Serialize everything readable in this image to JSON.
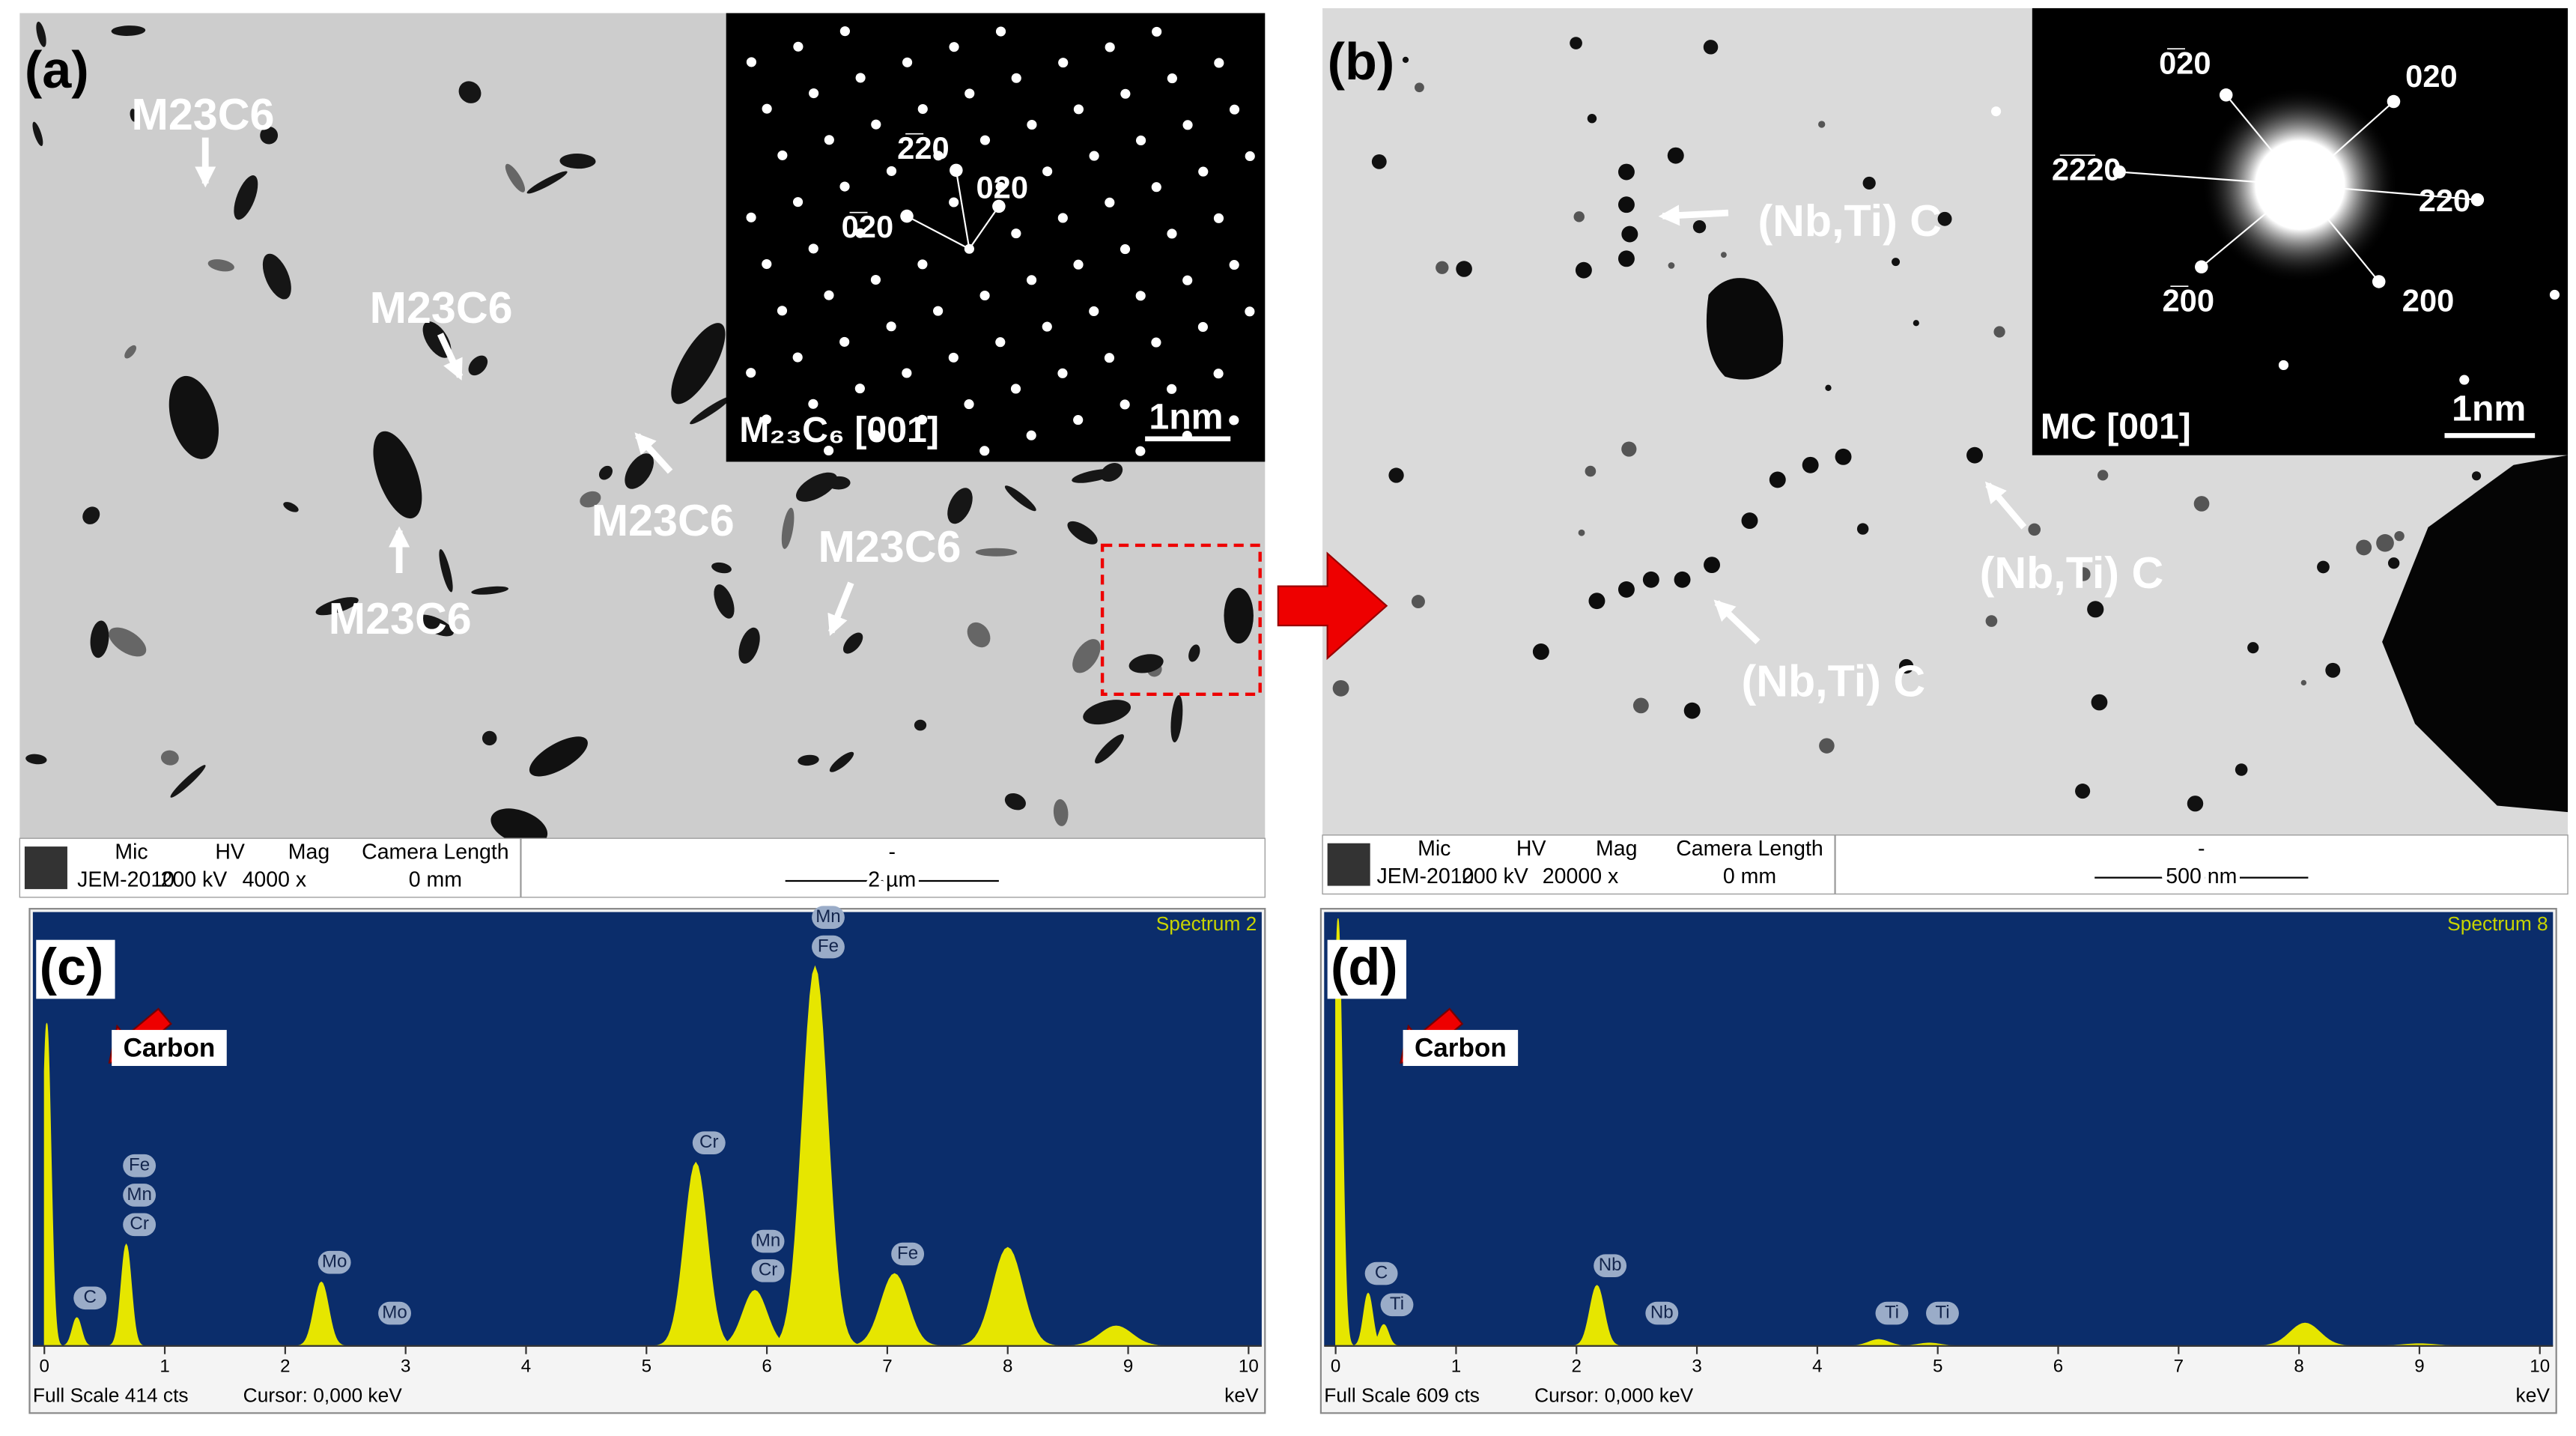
{
  "images": [
    {
      "label": "(a)",
      "annotations": [
        "M23C6",
        "M23C6",
        "M23C6",
        "M23C6",
        "M23C6"
      ],
      "inset": {
        "spots": [
          "2̅20",
          "020",
          "0̅20"
        ],
        "caption": "M₂₃C₆ [001]",
        "scale": "1nm"
      },
      "status": {
        "header": [
          "Mic",
          "HV",
          "Mag",
          "Camera Length"
        ],
        "values": [
          "JEM-2010",
          "200 kV",
          "4000 x",
          "0 mm"
        ],
        "scale_dash": "-",
        "scale": "2 µm"
      }
    },
    {
      "label": "(b)",
      "annotations": [
        "(Nb,Ti) C",
        "(Nb,Ti) C",
        "(Nb,Ti) C"
      ],
      "inset": {
        "spots": [
          "0̅20",
          "020",
          "2̅2̅20",
          "220",
          "2̅00",
          "200"
        ],
        "caption": "MC [001]",
        "scale": "1nm"
      },
      "status": {
        "header": [
          "Mic",
          "HV",
          "Mag",
          "Camera Length"
        ],
        "values": [
          "JEM-2010",
          "200 kV",
          "20000 x",
          "0 mm"
        ],
        "scale_dash": "-",
        "scale": "500 nm"
      }
    }
  ],
  "chart_data": [
    {
      "type": "area",
      "label": "(c)",
      "title": "Spectrum 2",
      "callout": "Carbon",
      "x": [
        0.02,
        0.27,
        0.68,
        2.3,
        5.41,
        5.9,
        6.4,
        7.06,
        8.0,
        8.9
      ],
      "values": [
        308,
        27,
        97,
        61,
        175,
        53,
        362,
        69,
        94,
        19
      ],
      "color": "#e6e600",
      "xlim": [
        0,
        10
      ],
      "xticks": [
        0,
        1,
        2,
        3,
        4,
        5,
        6,
        7,
        8,
        9,
        10
      ],
      "ylim": [
        0,
        414
      ],
      "x_label": "keV",
      "footer": [
        "Full Scale 414 cts",
        "Cursor: 0,000 keV"
      ],
      "annotations": [
        {
          "label": "C",
          "x": 0.27
        },
        {
          "label": "Cr",
          "x": 0.68
        },
        {
          "label": "Mn",
          "x": 0.68
        },
        {
          "label": "Fe",
          "x": 0.68
        },
        {
          "label": "Mo",
          "x": 2.3
        },
        {
          "label": "Mo",
          "x": 2.8
        },
        {
          "label": "Cr",
          "x": 5.41
        },
        {
          "label": "Cr",
          "x": 5.9
        },
        {
          "label": "Mn",
          "x": 5.9
        },
        {
          "label": "Fe",
          "x": 6.4
        },
        {
          "label": "Mn",
          "x": 6.4
        },
        {
          "label": "Fe",
          "x": 7.06
        }
      ]
    },
    {
      "type": "area",
      "label": "(d)",
      "title": "Spectrum 8",
      "callout": "Carbon",
      "x": [
        0.02,
        0.27,
        0.4,
        2.17,
        4.51,
        4.93,
        8.05,
        9.0
      ],
      "values": [
        600,
        74,
        30,
        85,
        9,
        4,
        32,
        3
      ],
      "color": "#e6e600",
      "xlim": [
        0,
        10
      ],
      "xticks": [
        0,
        1,
        2,
        3,
        4,
        5,
        6,
        7,
        8,
        9,
        10
      ],
      "ylim": [
        0,
        609
      ],
      "x_label": "keV",
      "footer": [
        "Full Scale 609 cts",
        "Cursor: 0,000 keV"
      ],
      "annotations": [
        {
          "label": "C",
          "x": 0.27
        },
        {
          "label": "Ti",
          "x": 0.4
        },
        {
          "label": "Nb",
          "x": 2.17
        },
        {
          "label": "Nb",
          "x": 2.6
        },
        {
          "label": "Ti",
          "x": 4.51
        },
        {
          "label": "Ti",
          "x": 4.93
        }
      ]
    }
  ]
}
